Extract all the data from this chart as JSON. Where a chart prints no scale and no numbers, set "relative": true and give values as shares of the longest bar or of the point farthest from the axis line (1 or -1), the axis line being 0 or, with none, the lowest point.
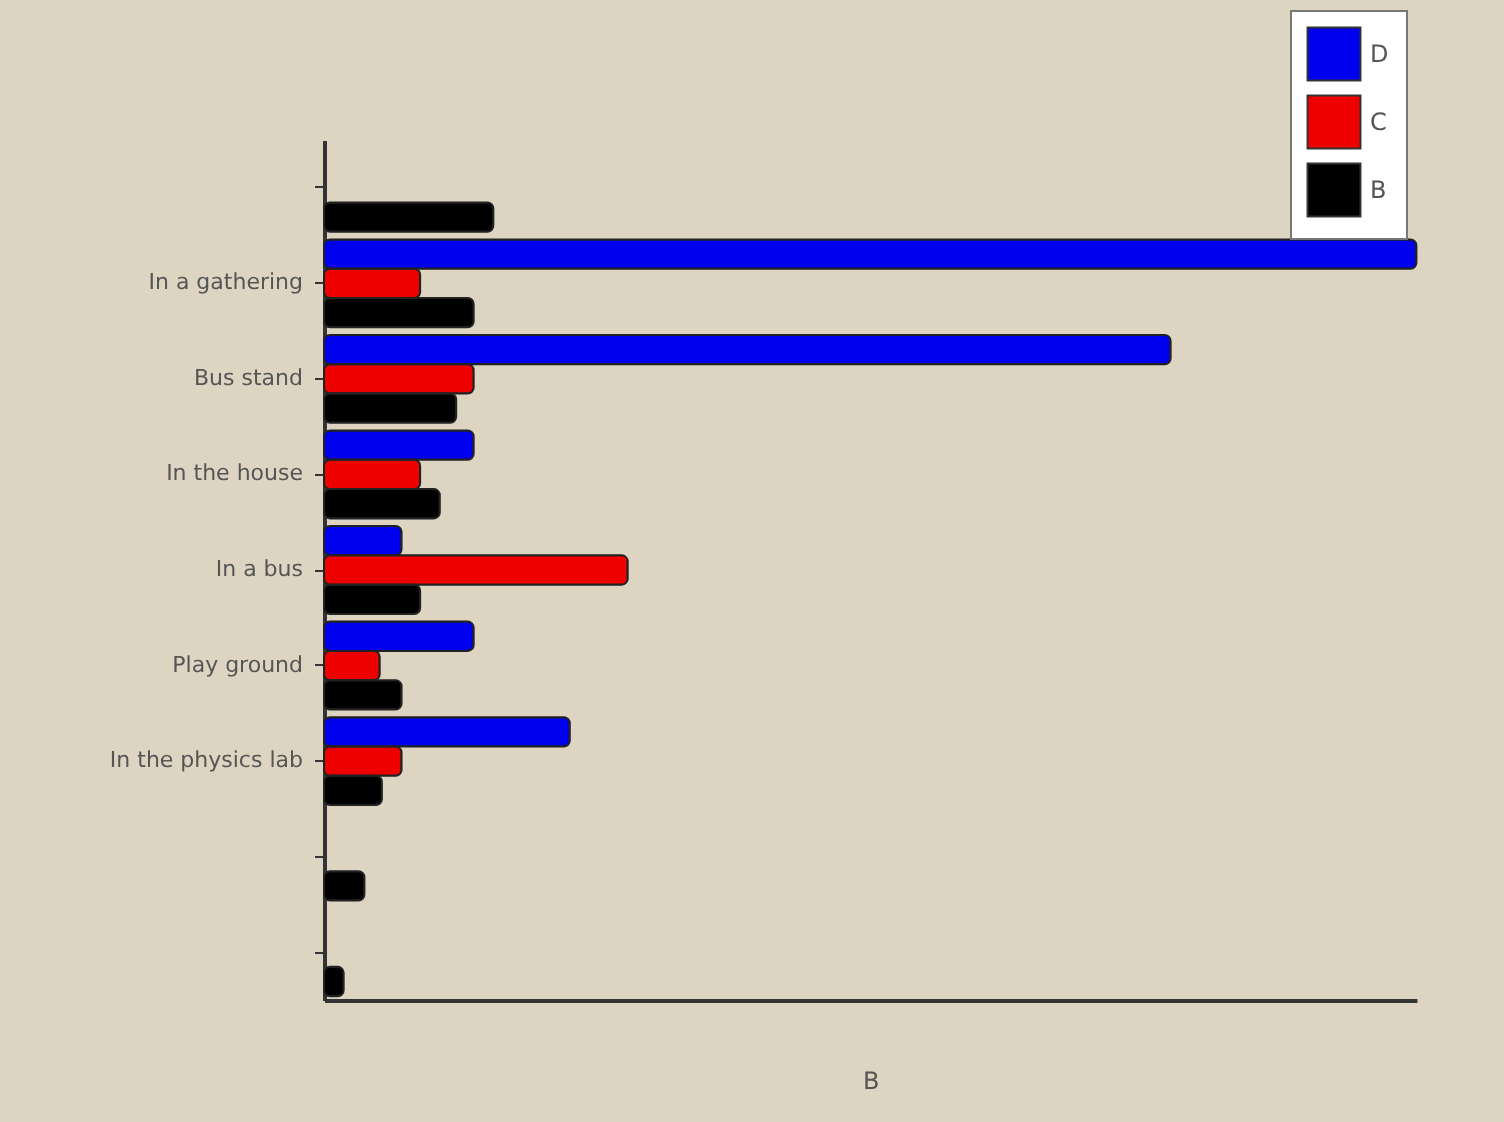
{
  "chart_data": {
    "type": "bar",
    "orientation": "horizontal",
    "relative": true,
    "xlabel": "B",
    "categories": [
      null,
      "In a gathering",
      "Bus stand",
      "In the house",
      "In a bus",
      "Play ground",
      "In the physics lab",
      null,
      null
    ],
    "series": [
      {
        "name": "D",
        "color": "#0000ee",
        "values": [
          null,
          1.0,
          0.775,
          0.137,
          0.071,
          0.137,
          0.225,
          null,
          null
        ]
      },
      {
        "name": "C",
        "color": "#ee0000",
        "values": [
          null,
          0.088,
          0.137,
          0.088,
          0.278,
          0.051,
          0.071,
          null,
          null
        ]
      },
      {
        "name": "B",
        "color": "#000000",
        "values": [
          0.155,
          0.137,
          0.121,
          0.106,
          0.088,
          0.071,
          0.053,
          0.037,
          0.018
        ]
      }
    ],
    "legend": "top right",
    "grid": false
  }
}
